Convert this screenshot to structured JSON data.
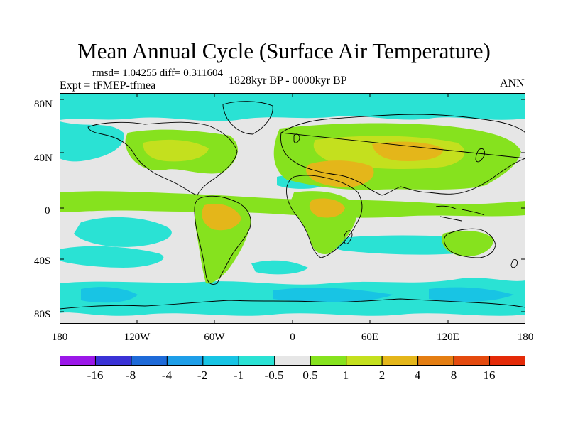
{
  "title": "Mean Annual Cycle (Surface Air Temperature)",
  "stats": "rmsd= 1.04255 diff= 0.311604",
  "period": "1828kyr BP - 0000kyr BP",
  "experiment": "Expt = tFMEP-tfmea",
  "season": "ANN",
  "lat_labels": [
    "80N",
    "40N",
    "0",
    "40S",
    "80S"
  ],
  "lon_labels": [
    "180",
    "120W",
    "60W",
    "0",
    "60E",
    "120E",
    "180"
  ],
  "colorbar": {
    "labels": [
      "-16",
      "-8",
      "-4",
      "-2",
      "-1",
      "-0.5",
      "0.5",
      "1",
      "2",
      "4",
      "8",
      "16"
    ],
    "colors": [
      "#9b17e8",
      "#3a32d6",
      "#1e6ad8",
      "#1e9ee8",
      "#18c4e4",
      "#2ae2d4",
      "#e6e6e6",
      "#86e21e",
      "#c4e01e",
      "#e4b61a",
      "#e47e12",
      "#e44a0e",
      "#e42a08"
    ]
  },
  "map_colors": {
    "neutral": "#e6e6e6",
    "cool1": "#2ae2d4",
    "cool2": "#18c4e4",
    "cool3": "#1e9ee8",
    "warm1": "#86e21e",
    "warm2": "#c4e01e",
    "warm3": "#e4b61a",
    "coast": "#000000"
  }
}
